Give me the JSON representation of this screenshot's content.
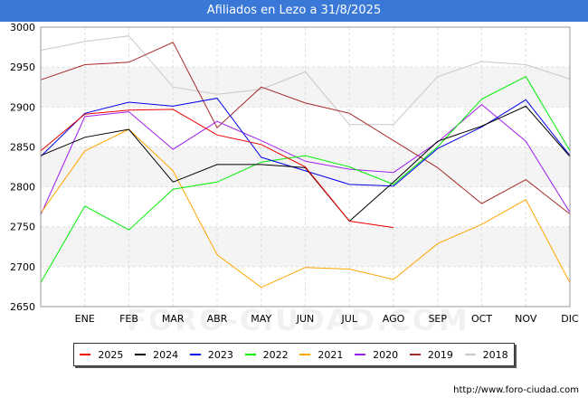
{
  "page": {
    "title": "Afiliados en Lezo a 31/8/2025",
    "source": "http://www.foro-ciudad.com",
    "watermark": "FORO-CIUDAD.COM"
  },
  "chart_data": {
    "type": "line",
    "title": "Afiliados en Lezo a 31/8/2025",
    "categories": [
      "",
      "ENE",
      "FEB",
      "MAR",
      "ABR",
      "MAY",
      "JUN",
      "JUL",
      "AGO",
      "SEP",
      "OCT",
      "NOV",
      "DIC"
    ],
    "ylim": [
      2650,
      3000
    ],
    "yticks": [
      2650,
      2700,
      2750,
      2800,
      2850,
      2900,
      2950,
      3000
    ],
    "grid": true,
    "legend_position": "bottom",
    "series": [
      {
        "name": "2025",
        "color": "#ee0000",
        "values": [
          2845,
          2891,
          2896,
          2897,
          2865,
          2853,
          2825,
          2757,
          2749,
          null,
          null,
          null,
          null
        ]
      },
      {
        "name": "2024",
        "color": "#000000",
        "values": [
          2839,
          2862,
          2872,
          2806,
          2828,
          2828,
          2824,
          2757,
          2806,
          2857,
          2876,
          2901,
          2838
        ]
      },
      {
        "name": "2023",
        "color": "#0000ee",
        "values": [
          2838,
          2892,
          2906,
          2901,
          2911,
          2837,
          2820,
          2803,
          2801,
          2848,
          2875,
          2909,
          2839
        ]
      },
      {
        "name": "2022",
        "color": "#00ee00",
        "values": [
          2680,
          2776,
          2746,
          2797,
          2806,
          2831,
          2839,
          2825,
          2803,
          2850,
          2910,
          2938,
          2845
        ]
      },
      {
        "name": "2021",
        "color": "#ffa500",
        "values": [
          2767,
          2845,
          2872,
          2820,
          2715,
          2674,
          2699,
          2697,
          2684,
          2729,
          2753,
          2784,
          2680
        ]
      },
      {
        "name": "2020",
        "color": "#a020f0",
        "values": [
          2765,
          2888,
          2894,
          2847,
          2882,
          2858,
          2832,
          2822,
          2818,
          2856,
          2903,
          2857,
          2768
        ]
      },
      {
        "name": "2019",
        "color": "#a52a2a",
        "values": [
          2934,
          2953,
          2956,
          2981,
          2874,
          2925,
          2905,
          2892,
          2858,
          2824,
          2779,
          2809,
          2766
        ]
      },
      {
        "name": "2018",
        "color": "#c8c8c8",
        "values": [
          2971,
          2982,
          2989,
          2925,
          2916,
          2922,
          2944,
          2878,
          2878,
          2938,
          2957,
          2953,
          2935
        ]
      }
    ]
  }
}
